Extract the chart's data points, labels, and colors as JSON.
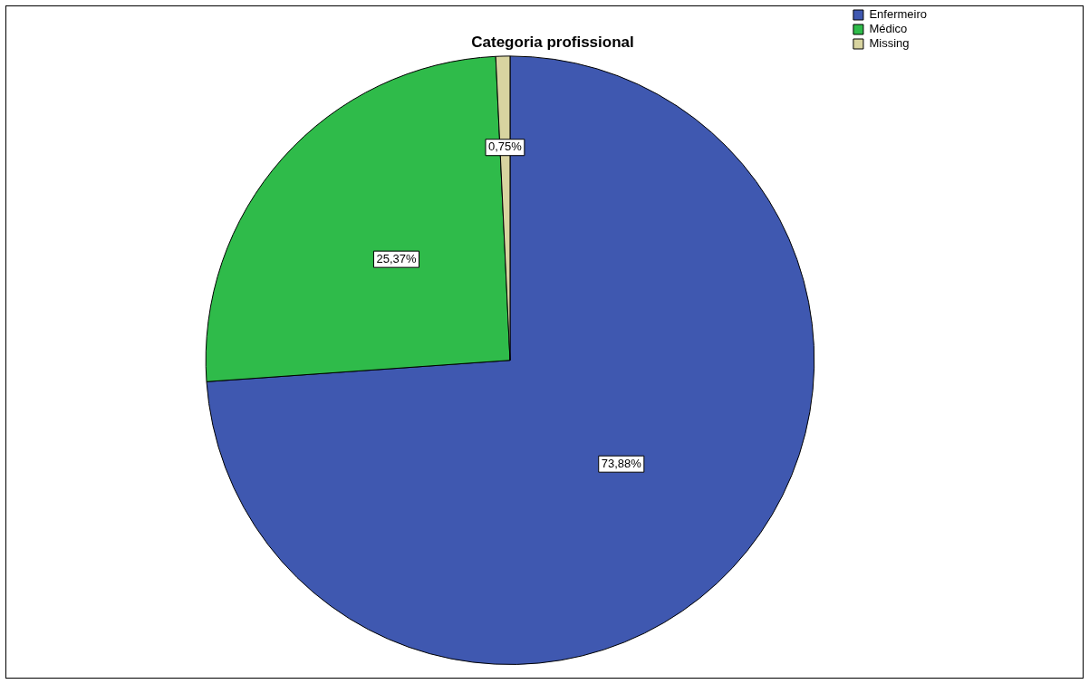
{
  "chart_data": {
    "type": "pie",
    "title": "Categoria profissional",
    "categories": [
      "Enfermeiro",
      "Médico",
      "Missing"
    ],
    "values": [
      73.88,
      25.37,
      0.75
    ],
    "colors": [
      "#3f58b0",
      "#2fbb4a",
      "#d8d4a0"
    ],
    "value_labels": [
      "73,88%",
      "25,37%",
      "0,75%"
    ],
    "legend": "top right"
  }
}
